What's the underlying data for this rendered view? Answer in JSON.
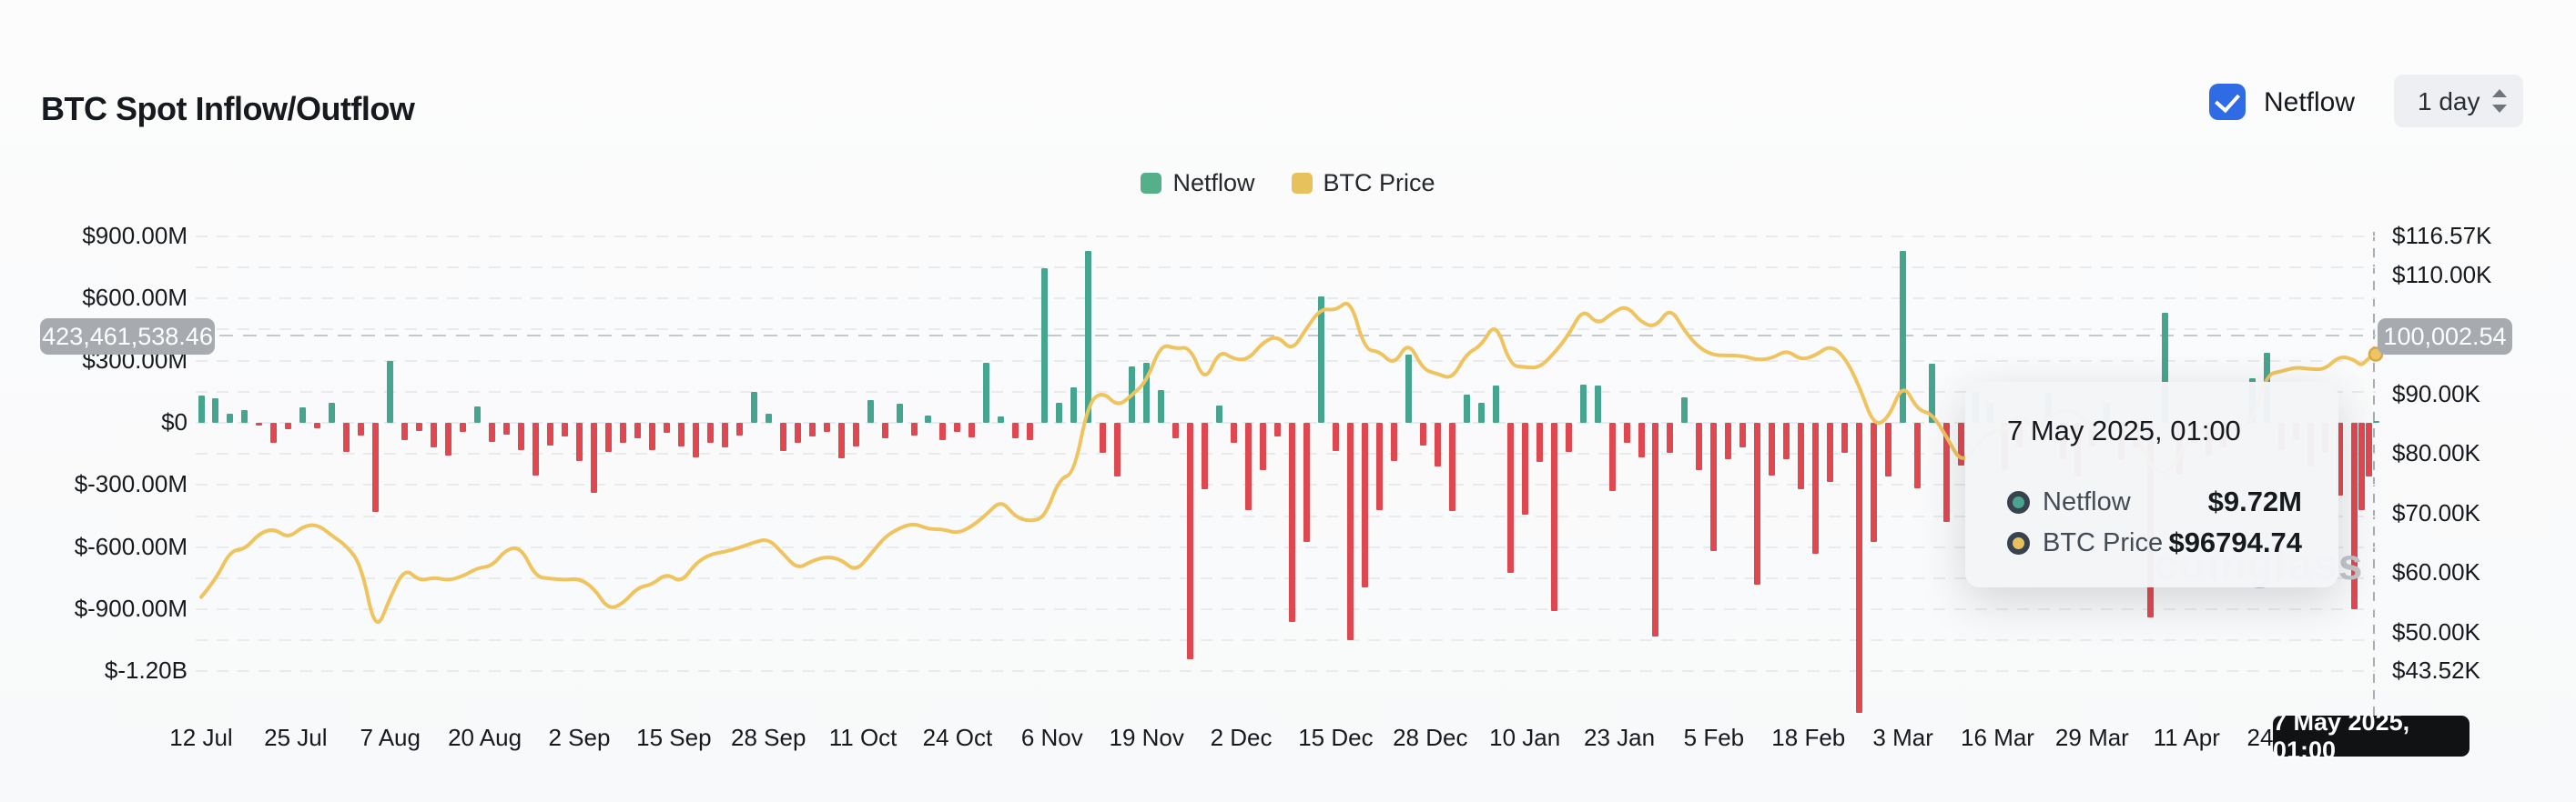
{
  "header": {
    "title": "BTC Spot Inflow/Outflow",
    "netflow_checkbox_label": "Netflow",
    "interval_select_value": "1 day"
  },
  "legend": [
    {
      "label": "Netflow",
      "color": "#55b089"
    },
    {
      "label": "BTC Price",
      "color": "#e7c15c"
    }
  ],
  "axis_badges": {
    "left_current_value": "423,461,538.46",
    "right_current_value": "100,002.54",
    "current_value_m": 423.46
  },
  "x_axis_time_badge": "7 May 2025, 01:00",
  "tooltip": {
    "title": "7 May 2025, 01:00",
    "rows": [
      {
        "label": "Netflow",
        "value": "$9.72M",
        "color": "#4aa590"
      },
      {
        "label": "BTC Price",
        "value": "$96794.74",
        "color": "#e7c15c"
      }
    ]
  },
  "watermark": "coinglass",
  "colors": {
    "inflow": "#46a58f",
    "outflow": "#e04850",
    "price_line": "#efc35e",
    "price_dot_fill": "#eec561",
    "price_dot_stroke": "#d7a845",
    "checkbox_accent": "#2e6be4"
  },
  "chart_data": {
    "type": "bar+line",
    "title": "BTC Spot Inflow/Outflow",
    "legend_position": "top-center",
    "grid": "dashed-horizontal",
    "left_axis": {
      "unit": "USD netflow",
      "max_m": 900,
      "min_m": -1200,
      "ticks": [
        [
          "$900.00M",
          900
        ],
        [
          "$600.00M",
          600
        ],
        [
          "$300.00M",
          300
        ],
        [
          "$0",
          0
        ],
        [
          "$-300.00M",
          -300
        ],
        [
          "$-600.00M",
          -600
        ],
        [
          "$-900.00M",
          -900
        ],
        [
          "$-1.20B",
          -1200
        ]
      ],
      "minor_step_m": 150
    },
    "right_axis": {
      "unit": "BTC price USD",
      "max_k": 116.57,
      "min_k": 43.52,
      "ticks": [
        [
          "$116.57K",
          116.57
        ],
        [
          "$110.00K",
          110
        ],
        [
          "$90.00K",
          90
        ],
        [
          "$80.00K",
          80
        ],
        [
          "$70.00K",
          70
        ],
        [
          "$60.00K",
          60
        ],
        [
          "$50.00K",
          50
        ],
        [
          "$43.52K",
          43.52
        ]
      ]
    },
    "x_ticks": [
      [
        "12 Jul",
        0
      ],
      [
        "25 Jul",
        13
      ],
      [
        "7 Aug",
        26
      ],
      [
        "20 Aug",
        39
      ],
      [
        "2 Sep",
        52
      ],
      [
        "15 Sep",
        65
      ],
      [
        "28 Sep",
        78
      ],
      [
        "11 Oct",
        91
      ],
      [
        "24 Oct",
        104
      ],
      [
        "6 Nov",
        117
      ],
      [
        "19 Nov",
        130
      ],
      [
        "2 Dec",
        143
      ],
      [
        "15 Dec",
        156
      ],
      [
        "28 Dec",
        169
      ],
      [
        "10 Jan",
        182
      ],
      [
        "23 Jan",
        195
      ],
      [
        "5 Feb",
        208
      ],
      [
        "18 Feb",
        221
      ],
      [
        "3 Mar",
        234
      ],
      [
        "16 Mar",
        247
      ],
      [
        "29 Mar",
        260
      ],
      [
        "11 Apr",
        273
      ],
      [
        "24 Apr",
        286
      ]
    ],
    "day0_date": "12 Jul 2024",
    "last_day_date": "7 May 2025",
    "total_days": 299,
    "days": [
      0,
      2,
      4,
      6,
      8,
      10,
      12,
      14,
      16,
      18,
      20,
      22,
      24,
      26,
      28,
      30,
      32,
      34,
      36,
      38,
      40,
      42,
      44,
      46,
      48,
      50,
      52,
      54,
      56,
      58,
      60,
      62,
      64,
      66,
      68,
      70,
      72,
      74,
      76,
      78,
      80,
      82,
      84,
      86,
      88,
      90,
      92,
      94,
      96,
      98,
      100,
      102,
      104,
      106,
      108,
      110,
      112,
      114,
      116,
      118,
      120,
      122,
      124,
      126,
      128,
      130,
      132,
      134,
      136,
      138,
      140,
      142,
      144,
      146,
      148,
      150,
      152,
      154,
      156,
      158,
      160,
      162,
      164,
      166,
      168,
      170,
      172,
      174,
      176,
      178,
      180,
      182,
      184,
      186,
      188,
      190,
      192,
      194,
      196,
      198,
      200,
      202,
      204,
      206,
      208,
      210,
      212,
      214,
      216,
      218,
      220,
      222,
      224,
      226,
      228,
      230,
      232,
      234,
      236,
      238,
      240,
      242,
      244,
      246,
      248,
      250,
      252,
      254,
      256,
      258,
      260,
      262,
      264,
      266,
      268,
      270,
      272,
      274,
      276,
      278,
      280,
      282,
      284,
      286,
      288,
      290,
      292,
      294,
      296,
      297,
      298,
      299
    ],
    "netflow_m": [
      130,
      120,
      45,
      60,
      -15,
      -95,
      -30,
      75,
      -25,
      95,
      -140,
      -60,
      -430,
      300,
      -85,
      -40,
      -120,
      -160,
      -45,
      80,
      -90,
      -55,
      -130,
      -255,
      -110,
      -65,
      -185,
      -340,
      -140,
      -95,
      -75,
      -130,
      -50,
      -115,
      -165,
      -95,
      -120,
      -60,
      150,
      45,
      -135,
      -95,
      -65,
      -45,
      -170,
      -115,
      110,
      -75,
      90,
      -60,
      35,
      -85,
      -45,
      -70,
      290,
      30,
      -75,
      -85,
      745,
      95,
      170,
      830,
      -145,
      -260,
      270,
      290,
      160,
      -75,
      -1140,
      -320,
      85,
      -95,
      -420,
      -230,
      -65,
      -960,
      -575,
      610,
      -135,
      -1050,
      -795,
      -420,
      -185,
      330,
      -110,
      -210,
      -425,
      135,
      95,
      180,
      -725,
      -445,
      -190,
      -910,
      -140,
      185,
      180,
      -330,
      -95,
      -165,
      -1030,
      -145,
      125,
      -230,
      -620,
      -175,
      -120,
      -780,
      -255,
      -175,
      -320,
      -630,
      -285,
      -145,
      -1400,
      -575,
      -260,
      830,
      -315,
      285,
      -480,
      -205,
      150,
      95,
      -230,
      -120,
      -85,
      145,
      -175,
      -260,
      -115,
      95,
      -180,
      -120,
      -940,
      530,
      -250,
      -95,
      -160,
      -120,
      -45,
      215,
      340,
      -130,
      -85,
      -210,
      -145,
      -350,
      -900,
      -420,
      -260,
      9.72
    ],
    "price_k": [
      56.0,
      58.9,
      63.8,
      64.0,
      66.7,
      67.5,
      65.9,
      67.9,
      68.2,
      66.3,
      64.6,
      61.4,
      49.8,
      56.0,
      60.9,
      58.7,
      59.3,
      58.8,
      59.5,
      60.9,
      61.2,
      64.1,
      64.3,
      59.4,
      59.1,
      58.9,
      59.1,
      57.5,
      53.9,
      54.9,
      57.6,
      58.1,
      60.0,
      58.4,
      61.7,
      63.2,
      63.6,
      64.3,
      65.2,
      65.8,
      63.3,
      60.7,
      62.1,
      62.8,
      62.3,
      60.3,
      63.1,
      66.1,
      67.6,
      68.4,
      67.4,
      67.4,
      66.7,
      67.9,
      69.9,
      72.3,
      69.4,
      68.7,
      69.4,
      75.9,
      76.7,
      88.7,
      90.5,
      88.0,
      89.9,
      92.3,
      98.5,
      97.7,
      98.0,
      91.9,
      97.5,
      95.9,
      95.9,
      98.8,
      99.9,
      97.3,
      101.2,
      104.5,
      104.1,
      106.1,
      97.5,
      97.3,
      94.9,
      99.0,
      94.2,
      93.5,
      92.6,
      96.9,
      98.2,
      102.3,
      94.9,
      94.6,
      94.5,
      96.9,
      100.0,
      104.5,
      101.7,
      103.7,
      105.0,
      102.1,
      101.3,
      104.7,
      100.6,
      97.8,
      96.6,
      96.6,
      96.5,
      95.8,
      96.1,
      97.5,
      95.8,
      96.6,
      98.3,
      96.3,
      91.4,
      84.7,
      86.0,
      92.0,
      87.4,
      86.8,
      82.9,
      78.5,
      81.1,
      84.0,
      83.7,
      86.9,
      84.2,
      86.1,
      87.5,
      86.9,
      84.4,
      82.4,
      85.1,
      83.2,
      78.2,
      76.3,
      79.6,
      83.7,
      84.5,
      84.0,
      84.5,
      85.2,
      93.4,
      93.9,
      94.6,
      94.3,
      94.2,
      96.5,
      95.9,
      94.8,
      96.1,
      96.79
    ]
  }
}
